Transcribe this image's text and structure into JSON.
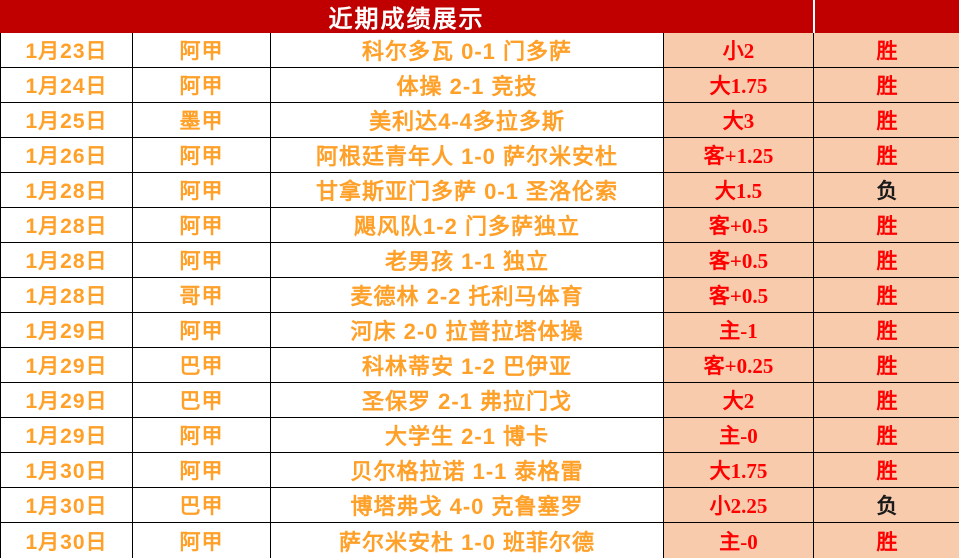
{
  "header": {
    "title": "近期成绩展示"
  },
  "colors": {
    "header_bg": "#C00000",
    "highlight_bg": "#F8CBAD",
    "orange_text": "#FFA028",
    "red_text": "#FF0000",
    "loss_text": "#1A1A1A",
    "grid_border": "#000000",
    "header_divider": "#FFFFFF"
  },
  "rows": [
    {
      "date": "1月23日",
      "league": "阿甲",
      "match": "科尔多瓦 0-1 门多萨",
      "bet": "小2",
      "result": "胜",
      "result_color": "#FF0000"
    },
    {
      "date": "1月24日",
      "league": "阿甲",
      "match": "体操 2-1 竞技",
      "bet": "大1.75",
      "result": "胜",
      "result_color": "#FF0000"
    },
    {
      "date": "1月25日",
      "league": "墨甲",
      "match": "美利达4-4多拉多斯",
      "bet": "大3",
      "result": "胜",
      "result_color": "#FF0000"
    },
    {
      "date": "1月26日",
      "league": "阿甲",
      "match": "阿根廷青年人 1-0 萨尔米安杜",
      "bet": "客+1.25",
      "result": "胜",
      "result_color": "#FF0000"
    },
    {
      "date": "1月28日",
      "league": "阿甲",
      "match": "甘拿斯亚门多萨 0-1 圣洛伦索",
      "bet": "大1.5",
      "result": "负",
      "result_color": "#1A1A1A"
    },
    {
      "date": "1月28日",
      "league": "阿甲",
      "match": "飓风队1-2 门多萨独立",
      "bet": "客+0.5",
      "result": "胜",
      "result_color": "#FF0000"
    },
    {
      "date": "1月28日",
      "league": "阿甲",
      "match": "老男孩 1-1 独立",
      "bet": "客+0.5",
      "result": "胜",
      "result_color": "#FF0000"
    },
    {
      "date": "1月28日",
      "league": "哥甲",
      "match": "麦德林 2-2 托利马体育",
      "bet": "客+0.5",
      "result": "胜",
      "result_color": "#FF0000"
    },
    {
      "date": "1月29日",
      "league": "阿甲",
      "match": "河床 2-0 拉普拉塔体操",
      "bet": "主-1",
      "result": "胜",
      "result_color": "#FF0000"
    },
    {
      "date": "1月29日",
      "league": "巴甲",
      "match": "科林蒂安 1-2 巴伊亚",
      "bet": "客+0.25",
      "result": "胜",
      "result_color": "#FF0000"
    },
    {
      "date": "1月29日",
      "league": "巴甲",
      "match": "圣保罗 2-1 弗拉门戈",
      "bet": "大2",
      "result": "胜",
      "result_color": "#FF0000"
    },
    {
      "date": "1月29日",
      "league": "阿甲",
      "match": "大学生 2-1 博卡",
      "bet": "主-0",
      "result": "胜",
      "result_color": "#FF0000"
    },
    {
      "date": "1月30日",
      "league": "阿甲",
      "match": "贝尔格拉诺 1-1 泰格雷",
      "bet": "大1.75",
      "result": "胜",
      "result_color": "#FF0000"
    },
    {
      "date": "1月30日",
      "league": "巴甲",
      "match": "博塔弗戈 4-0 克鲁塞罗",
      "bet": "小2.25",
      "result": "负",
      "result_color": "#1A1A1A"
    },
    {
      "date": "1月30日",
      "league": "阿甲",
      "match": "萨尔米安杜 1-0 班菲尔德",
      "bet": "主-0",
      "result": "胜",
      "result_color": "#FF0000"
    }
  ]
}
